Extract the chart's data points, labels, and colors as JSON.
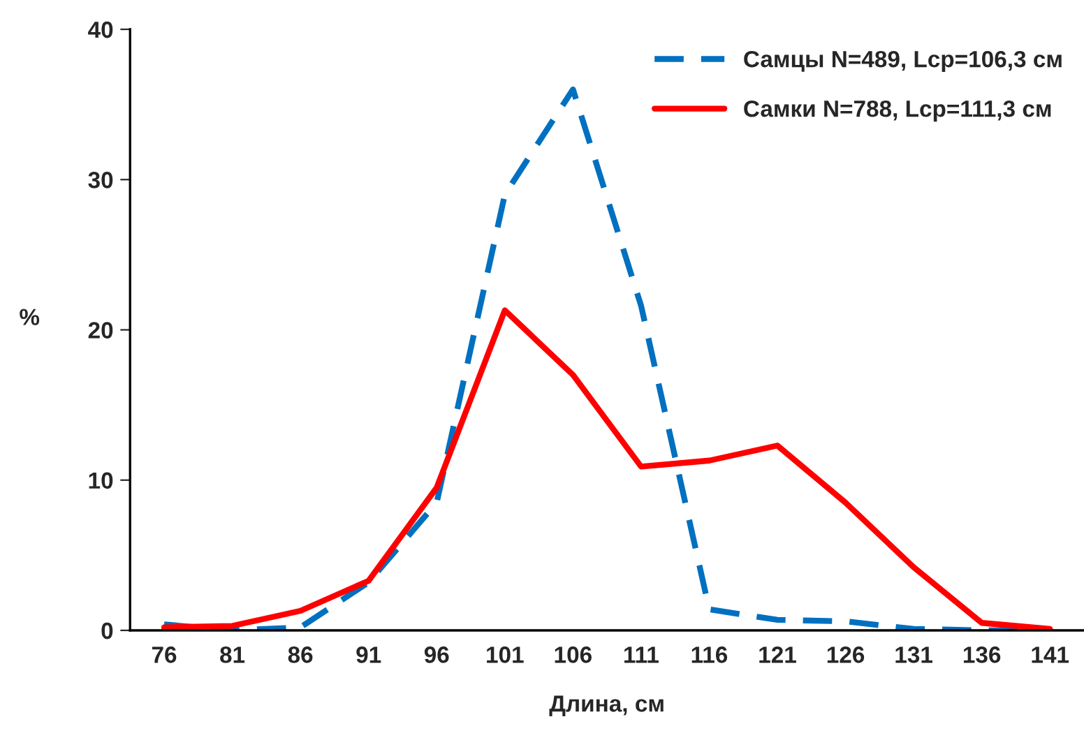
{
  "chart_data": {
    "type": "line",
    "xlabel": "Длина, см",
    "ylabel": "%",
    "categories": [
      "76",
      "81",
      "86",
      "91",
      "96",
      "101",
      "106",
      "111",
      "116",
      "121",
      "126",
      "131",
      "136",
      "141"
    ],
    "series": [
      {
        "name": "Самцы N=489, Lср=106,3 см",
        "color": "#0070c0",
        "line_style": "dashed",
        "values": [
          0.4,
          0,
          0.2,
          3.2,
          8.5,
          29,
          36,
          21.6,
          1.4,
          0.7,
          0.6,
          0.1,
          0,
          0
        ]
      },
      {
        "name": "Самки N=788, Lср=111,3 см",
        "color": "#ff0000",
        "line_style": "solid",
        "values": [
          0.2,
          0.3,
          1.3,
          3.3,
          9.5,
          21.3,
          17,
          10.9,
          11.3,
          12.3,
          8.5,
          4.2,
          0.5,
          0.1
        ]
      }
    ],
    "ylim": [
      0,
      40
    ],
    "yticks": [
      0,
      10,
      20,
      30,
      40
    ],
    "grid": false,
    "legend": "top right",
    "marker": "none"
  }
}
